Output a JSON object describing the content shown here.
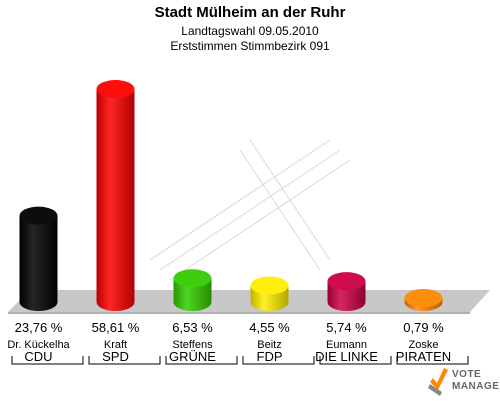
{
  "title": "Stadt Mülheim an der Ruhr",
  "subtitle": "Landtagswahl 09.05.2010",
  "subtitle2": "Erststimmen Stimmbezirk 091",
  "logo": {
    "line1": "VOTE",
    "line2": "MANAGER",
    "icon": "checkmark-ballot-icon"
  },
  "chart_data": {
    "type": "bar",
    "title": "Stadt Mülheim an der Ruhr",
    "categories": [
      "CDU",
      "SPD",
      "GRÜNE",
      "FDP",
      "DIE LINKE",
      "PIRATEN"
    ],
    "candidates": [
      "Dr. Kückelha",
      "Kraft",
      "Steffens",
      "Beitz",
      "Eumann",
      "Zoske"
    ],
    "values": [
      23.76,
      58.61,
      6.53,
      4.55,
      5.74,
      0.79
    ],
    "value_labels": [
      "23,76 %",
      "58,61 %",
      "6,53 %",
      "4,55 %",
      "5,74 %",
      "0,79 %"
    ],
    "colors": [
      "#000000",
      "#ff0000",
      "#33cc00",
      "#ffee00",
      "#cc0044",
      "#ff8800"
    ],
    "ylim": [
      0,
      60
    ],
    "grid": false
  }
}
